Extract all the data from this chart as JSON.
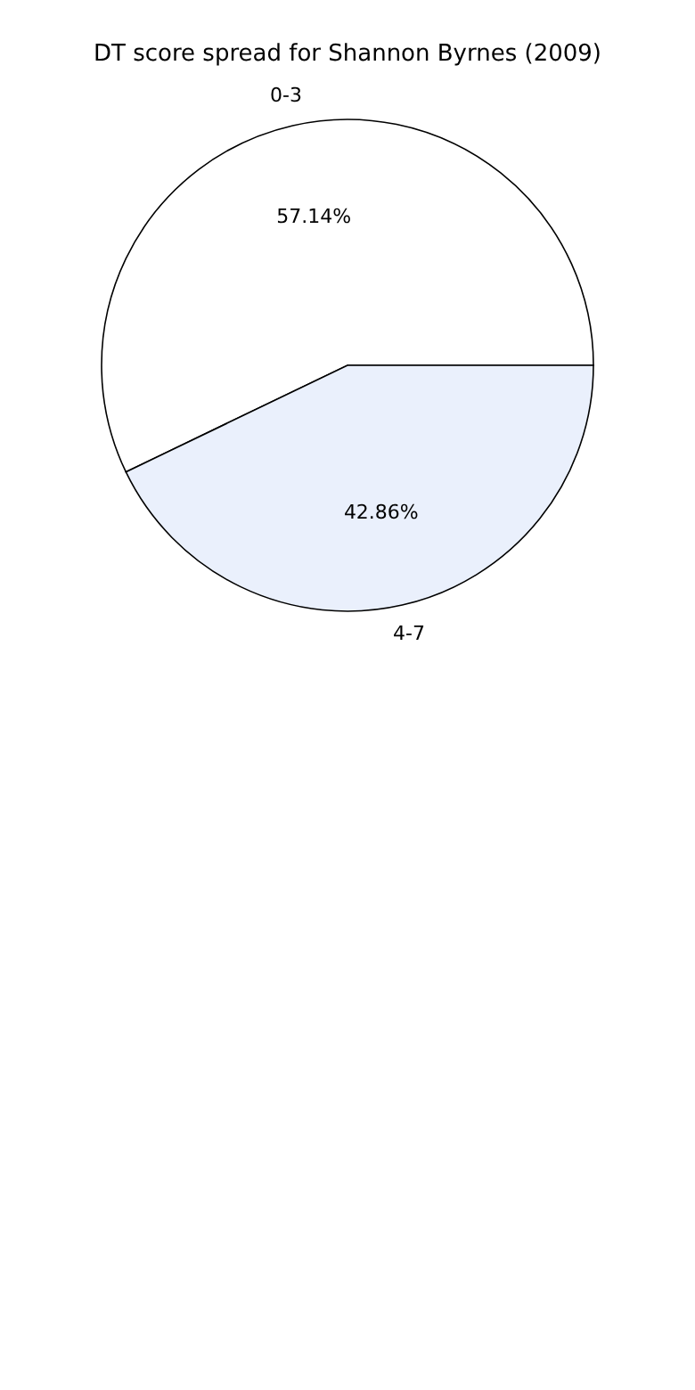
{
  "chart_data": {
    "type": "pie",
    "title": "DT score spread for Shannon Byrnes (2009)",
    "categories": [
      "0-3",
      "4-7"
    ],
    "values": [
      57.14,
      42.86
    ],
    "colors": [
      "#ffffff",
      "#eaf0fc"
    ],
    "value_labels": [
      "57.14%",
      "42.86%"
    ]
  }
}
